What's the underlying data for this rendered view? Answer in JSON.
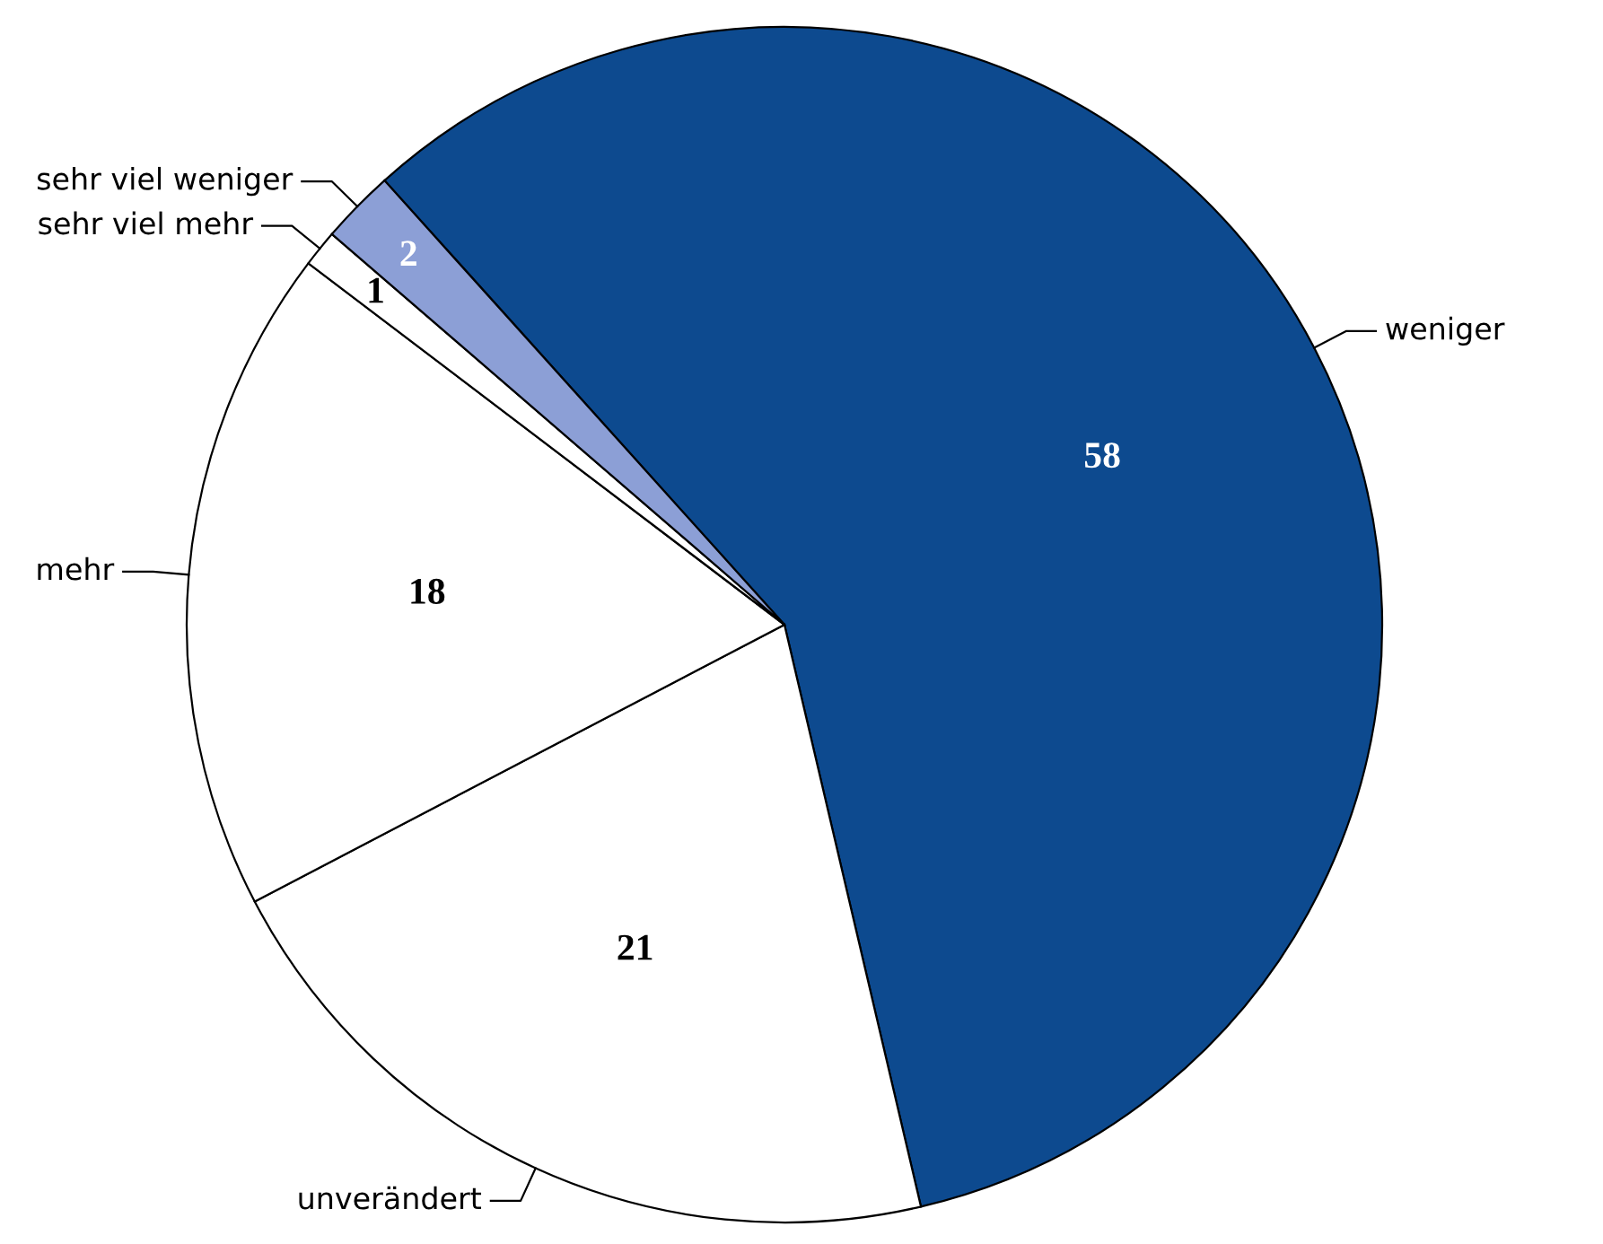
{
  "chart_data": {
    "type": "pie",
    "categories": [
      "weniger",
      "unverändert",
      "mehr",
      "sehr viel mehr",
      "sehr viel weniger"
    ],
    "values": [
      58,
      21,
      18,
      1,
      2
    ],
    "colors": [
      "#0d4a8f",
      "#ffffff",
      "#ffffff",
      "#ffffff",
      "#8c9fd6"
    ],
    "data_labels": true
  }
}
